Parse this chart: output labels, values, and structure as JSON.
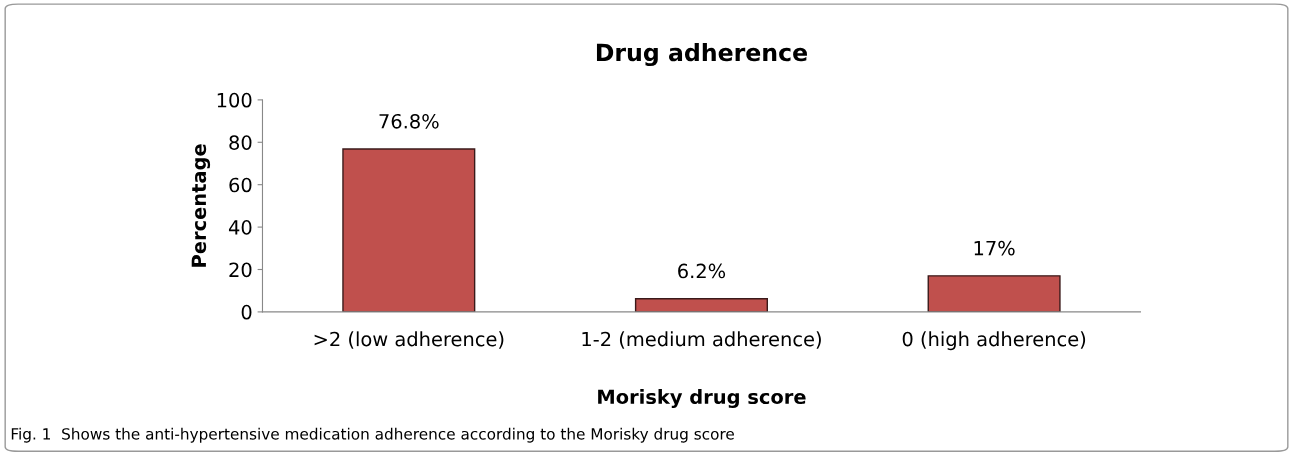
{
  "chart_data": {
    "type": "bar",
    "title": "Drug adherence",
    "xlabel": "Morisky drug score",
    "ylabel": "Percentage",
    "categories": [
      ">2 (low adherence)",
      "1-2 (medium adherence)",
      "0 (high adherence)"
    ],
    "values": [
      76.8,
      6.2,
      17
    ],
    "value_labels": [
      "76.8%",
      "6.2%",
      "17%"
    ],
    "color": "#c0504d",
    "ylim": [
      0,
      100
    ],
    "yticks": [
      0,
      20,
      40,
      60,
      80,
      100
    ],
    "grid": false,
    "legend": false,
    "annotations": [
      "Fig. 1  Shows the anti-hypertensive medication adherence according to the Morisky drug score"
    ]
  }
}
